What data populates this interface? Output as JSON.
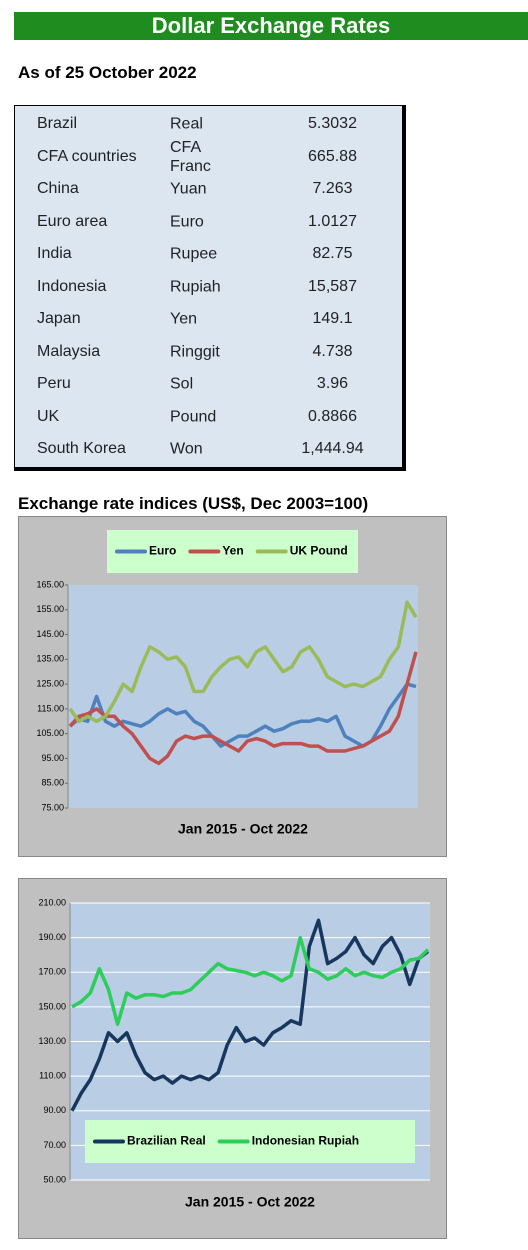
{
  "title": "Dollar Exchange Rates",
  "date": "As of 25 October 2022",
  "table": {
    "rows": [
      [
        "Brazil",
        "Real",
        "5.3032"
      ],
      [
        "CFA countries",
        "CFA Franc",
        "665.88"
      ],
      [
        "China",
        "Yuan",
        "7.263"
      ],
      [
        "Euro area",
        "Euro",
        "1.0127"
      ],
      [
        "India",
        "Rupee",
        "82.75"
      ],
      [
        "Indonesia",
        "Rupiah",
        "15,587"
      ],
      [
        "Japan",
        "Yen",
        "149.1"
      ],
      [
        "Malaysia",
        "Ringgit",
        "4.738"
      ],
      [
        "Peru",
        "Sol",
        "3.96"
      ],
      [
        "UK",
        "Pound",
        "0.8866"
      ],
      [
        "South Korea",
        "Won",
        "1,444.94"
      ]
    ]
  },
  "indices_heading": "Exchange rate indices (US$, Dec 2003=100)",
  "chart_data": [
    {
      "type": "line",
      "xlabel": "Jan 2015 - Oct 2022",
      "legend": "top",
      "grid": false,
      "ylim": [
        75,
        165
      ],
      "yticks": [
        {
          "value": 75,
          "label": "75.00"
        },
        {
          "value": 85,
          "label": "85.00"
        },
        {
          "value": 95,
          "label": "95.00"
        },
        {
          "value": 105,
          "label": "105.00"
        },
        {
          "value": 115,
          "label": "115.00"
        },
        {
          "value": 125,
          "label": "125.00"
        },
        {
          "value": 135,
          "label": "135.00"
        },
        {
          "value": 145,
          "label": "145.00"
        },
        {
          "value": 155,
          "label": "155.00"
        },
        {
          "value": 165,
          "label": "165.00"
        }
      ],
      "series": [
        {
          "name": "Euro",
          "color": "#4f81bd",
          "values": [
            108,
            111,
            110,
            120,
            110,
            108,
            110,
            109,
            108,
            110,
            113,
            115,
            113,
            114,
            110,
            108,
            104,
            100,
            102,
            104,
            104,
            106,
            108,
            106,
            107,
            109,
            110,
            110,
            111,
            110,
            112,
            104,
            102,
            100,
            102,
            108,
            115,
            120,
            125,
            124
          ]
        },
        {
          "name": "Yen",
          "color": "#c0504d",
          "values": [
            108,
            112,
            113,
            115,
            112,
            112,
            108,
            105,
            100,
            95,
            93,
            96,
            102,
            104,
            103,
            104,
            104,
            102,
            100,
            98,
            102,
            103,
            102,
            100,
            101,
            101,
            101,
            100,
            100,
            98,
            98,
            98,
            99,
            100,
            102,
            104,
            106,
            112,
            125,
            138
          ]
        },
        {
          "name": "UK Pound",
          "color": "#9bbb59",
          "values": [
            115,
            110,
            112,
            110,
            112,
            118,
            125,
            122,
            132,
            140,
            138,
            135,
            136,
            132,
            122,
            122,
            128,
            132,
            135,
            136,
            132,
            138,
            140,
            135,
            130,
            132,
            138,
            140,
            135,
            128,
            126,
            124,
            125,
            124,
            126,
            128,
            135,
            140,
            158,
            152
          ]
        }
      ]
    },
    {
      "type": "line",
      "xlabel": "Jan 2015 - Oct 2022",
      "legend": "bottom",
      "grid": true,
      "ylim": [
        50,
        210
      ],
      "yticks": [
        {
          "value": 50,
          "label": "50.00"
        },
        {
          "value": 70,
          "label": "70.00"
        },
        {
          "value": 90,
          "label": "90.00"
        },
        {
          "value": 110,
          "label": "110.00"
        },
        {
          "value": 130,
          "label": "130.00"
        },
        {
          "value": 150,
          "label": "150.00"
        },
        {
          "value": 170,
          "label": "170.00"
        },
        {
          "value": 190,
          "label": "190.00"
        },
        {
          "value": 210,
          "label": "210.00"
        }
      ],
      "series": [
        {
          "name": "Brazilian Real",
          "color": "#17375e",
          "values": [
            90,
            100,
            108,
            120,
            135,
            130,
            135,
            122,
            112,
            108,
            110,
            106,
            110,
            108,
            110,
            108,
            112,
            128,
            138,
            130,
            132,
            128,
            135,
            138,
            142,
            140,
            185,
            200,
            175,
            178,
            182,
            190,
            180,
            175,
            185,
            190,
            180,
            163,
            178,
            182
          ]
        },
        {
          "name": "Indonesian Rupiah",
          "color": "#2ecc5a",
          "values": [
            150,
            153,
            158,
            172,
            160,
            140,
            158,
            155,
            157,
            157,
            156,
            158,
            158,
            160,
            165,
            170,
            175,
            172,
            171,
            170,
            168,
            170,
            168,
            165,
            168,
            190,
            172,
            170,
            166,
            168,
            172,
            168,
            170,
            168,
            167,
            170,
            172,
            177,
            178,
            183
          ]
        }
      ]
    }
  ]
}
